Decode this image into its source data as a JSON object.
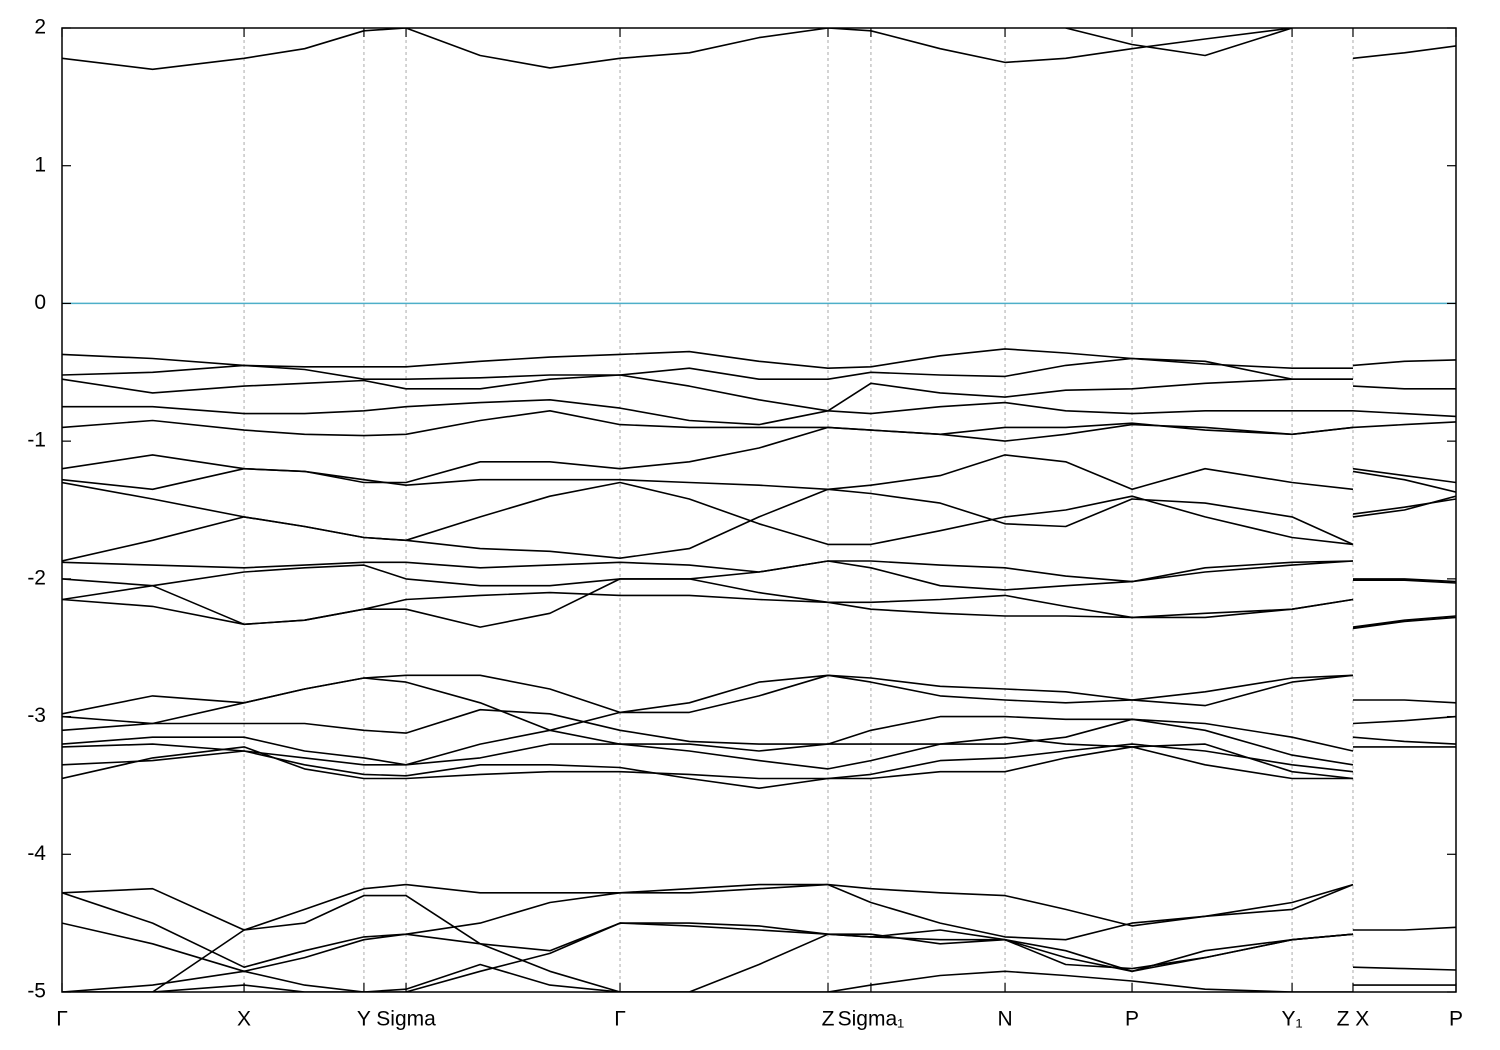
{
  "chart_data": {
    "type": "line",
    "color": "#000000",
    "fermi_color": "#4eafc9",
    "fermi_level": 0,
    "xlim": [
      0,
      1
    ],
    "ylim": [
      -5,
      2
    ],
    "yticks": [
      2,
      1,
      0,
      -1,
      -2,
      -3,
      -4,
      -5
    ],
    "xticks": [
      {
        "value": 0,
        "label": "Γ"
      },
      {
        "value": 0.1306,
        "label": "X"
      },
      {
        "value": 0.2166,
        "label": "Y"
      },
      {
        "value": 0.2468,
        "label": "Sigma"
      },
      {
        "value": 0.4003,
        "label": "Γ"
      },
      {
        "value": 0.5495,
        "label": "Z"
      },
      {
        "value": 0.5803,
        "label": "Sigma₁"
      },
      {
        "value": 0.6765,
        "label": "N"
      },
      {
        "value": 0.7676,
        "label": "P"
      },
      {
        "value": 0.8824,
        "label": "Y₁"
      },
      {
        "value": 0.9261,
        "label": "Z X"
      },
      {
        "value": 1,
        "label": "P"
      }
    ],
    "grid": true,
    "x": [
      0,
      0.065,
      0.1306,
      0.174,
      0.2166,
      0.2468,
      0.3,
      0.35,
      0.4003,
      0.45,
      0.5,
      0.5495,
      0.5803,
      0.63,
      0.6765,
      0.72,
      0.7676,
      0.82,
      0.8824,
      0.9261,
      0.9261,
      0.9261,
      0.963,
      1
    ],
    "series": [
      {
        "values": [
          1.78,
          1.7,
          1.78,
          1.85,
          1.98,
          2.0,
          1.8,
          1.71,
          1.78,
          1.82,
          1.93,
          2.0,
          1.98,
          1.85,
          1.75,
          1.78,
          1.85,
          1.92,
          2.0,
          null,
          null,
          1.78,
          1.82,
          1.87
        ]
      },
      {
        "values": [
          null,
          null,
          null,
          null,
          null,
          null,
          null,
          null,
          null,
          null,
          null,
          null,
          null,
          null,
          null,
          2.0,
          1.88,
          1.8,
          2.0,
          null,
          null,
          null,
          null,
          null
        ]
      },
      {
        "values": [
          -0.37,
          -0.4,
          -0.45,
          -0.46,
          -0.46,
          -0.46,
          -0.42,
          -0.39,
          -0.37,
          -0.35,
          -0.42,
          -0.47,
          -0.46,
          -0.38,
          -0.33,
          -0.36,
          -0.4,
          -0.44,
          -0.47,
          -0.47,
          null,
          -0.45,
          -0.42,
          -0.41
        ]
      },
      {
        "values": [
          -0.52,
          -0.5,
          -0.45,
          -0.48,
          -0.55,
          -0.55,
          -0.54,
          -0.52,
          -0.52,
          -0.47,
          -0.55,
          -0.55,
          -0.5,
          -0.52,
          -0.53,
          -0.45,
          -0.4,
          -0.42,
          -0.55,
          -0.55,
          null,
          -0.6,
          -0.62,
          -0.62
        ]
      },
      {
        "values": [
          -0.55,
          -0.65,
          -0.6,
          -0.58,
          -0.56,
          -0.62,
          -0.62,
          -0.55,
          -0.52,
          -0.6,
          -0.7,
          -0.78,
          -0.58,
          -0.65,
          -0.68,
          -0.63,
          -0.62,
          -0.58,
          -0.55,
          -0.55,
          null,
          -0.78,
          -0.8,
          -0.82
        ]
      },
      {
        "values": [
          -0.75,
          -0.75,
          -0.8,
          -0.8,
          -0.78,
          -0.75,
          -0.72,
          -0.7,
          -0.76,
          -0.85,
          -0.88,
          -0.78,
          -0.8,
          -0.75,
          -0.72,
          -0.78,
          -0.8,
          -0.78,
          -0.78,
          -0.78,
          null,
          -0.9,
          -0.88,
          -0.86
        ]
      },
      {
        "values": [
          -0.9,
          -0.85,
          -0.92,
          -0.95,
          -0.96,
          -0.95,
          -0.85,
          -0.78,
          -0.88,
          -0.9,
          -0.9,
          -0.9,
          -0.92,
          -0.95,
          -1.0,
          -0.95,
          -0.88,
          -0.9,
          -0.95,
          -0.9,
          null,
          -1.2,
          -1.25,
          -1.3
        ]
      },
      {
        "values": [
          -1.2,
          -1.1,
          -1.2,
          -1.22,
          -1.3,
          -1.3,
          -1.15,
          -1.15,
          -1.2,
          -1.15,
          -1.05,
          -0.9,
          -0.92,
          -0.95,
          -0.9,
          -0.9,
          -0.87,
          -0.92,
          -0.95,
          -0.9,
          null,
          -1.22,
          -1.28,
          -1.37
        ]
      },
      {
        "values": [
          -1.28,
          -1.35,
          -1.2,
          -1.22,
          -1.28,
          -1.32,
          -1.28,
          -1.28,
          -1.28,
          -1.3,
          -1.32,
          -1.35,
          -1.32,
          -1.25,
          -1.1,
          -1.15,
          -1.35,
          -1.2,
          -1.3,
          -1.35,
          null,
          -1.55,
          -1.5,
          -1.4
        ]
      },
      {
        "values": [
          -1.3,
          -1.42,
          -1.55,
          -1.62,
          -1.7,
          -1.72,
          -1.55,
          -1.4,
          -1.3,
          -1.42,
          -1.6,
          -1.75,
          -1.75,
          -1.65,
          -1.55,
          -1.5,
          -1.4,
          -1.55,
          -1.7,
          -1.75,
          null,
          -1.53,
          -1.48,
          -1.42
        ]
      },
      {
        "values": [
          -1.87,
          -1.72,
          -1.55,
          -1.62,
          -1.7,
          -1.72,
          -1.78,
          -1.8,
          -1.85,
          -1.78,
          -1.55,
          -1.35,
          -1.38,
          -1.45,
          -1.6,
          -1.62,
          -1.42,
          -1.45,
          -1.55,
          -1.75,
          null,
          -2.0,
          -2.0,
          -2.02
        ]
      },
      {
        "values": [
          -1.88,
          -1.9,
          -1.92,
          -1.9,
          -1.88,
          -1.88,
          -1.92,
          -1.9,
          -1.88,
          -1.9,
          -1.95,
          -1.87,
          -1.87,
          -1.9,
          -1.92,
          -1.98,
          -2.02,
          -1.92,
          -1.88,
          -1.87,
          null,
          -2.01,
          -2.01,
          -2.03
        ]
      },
      {
        "values": [
          -2.0,
          -2.05,
          -1.95,
          -1.92,
          -1.9,
          -2.0,
          -2.05,
          -2.05,
          -2.0,
          -2.0,
          -1.95,
          -1.87,
          -1.92,
          -2.05,
          -2.08,
          -2.05,
          -2.02,
          -1.95,
          -1.9,
          -1.87,
          null,
          -2.35,
          -2.3,
          -2.27
        ]
      },
      {
        "values": [
          -2.15,
          -2.2,
          -2.33,
          -2.3,
          -2.22,
          -2.15,
          -2.12,
          -2.1,
          -2.12,
          -2.12,
          -2.15,
          -2.17,
          -2.17,
          -2.15,
          -2.12,
          -2.2,
          -2.28,
          -2.25,
          -2.22,
          -2.15,
          null,
          -2.36,
          -2.31,
          -2.28
        ]
      },
      {
        "values": [
          -2.15,
          -2.05,
          -2.33,
          -2.3,
          -2.22,
          -2.22,
          -2.35,
          -2.25,
          -2.0,
          -2.0,
          -2.1,
          -2.17,
          -2.22,
          -2.25,
          -2.27,
          -2.27,
          -2.28,
          -2.28,
          -2.22,
          -2.15,
          null,
          null,
          null,
          null
        ]
      },
      {
        "values": [
          -2.98,
          -2.85,
          -2.9,
          -2.8,
          -2.72,
          -2.7,
          -2.7,
          -2.8,
          -2.97,
          -2.9,
          -2.75,
          -2.7,
          -2.72,
          -2.78,
          -2.8,
          -2.82,
          -2.88,
          -2.82,
          -2.72,
          -2.7,
          null,
          -2.88,
          -2.88,
          -2.9
        ]
      },
      {
        "values": [
          -3.0,
          -3.05,
          -2.9,
          -2.8,
          -2.72,
          -2.75,
          -2.9,
          -3.1,
          -2.97,
          -2.97,
          -2.85,
          -2.7,
          -2.75,
          -2.85,
          -2.88,
          -2.9,
          -2.88,
          -2.92,
          -2.75,
          -2.7,
          null,
          -3.05,
          -3.03,
          -3.0
        ]
      },
      {
        "values": [
          -3.1,
          -3.05,
          -3.05,
          -3.05,
          -3.1,
          -3.12,
          -2.95,
          -2.98,
          -3.1,
          -3.18,
          -3.2,
          -3.2,
          -3.2,
          -3.2,
          -3.2,
          -3.15,
          -3.02,
          -3.05,
          -3.15,
          -3.25,
          null,
          -3.15,
          -3.18,
          -3.2
        ]
      },
      {
        "values": [
          -3.2,
          -3.15,
          -3.15,
          -3.25,
          -3.3,
          -3.35,
          -3.2,
          -3.1,
          -3.2,
          -3.2,
          -3.25,
          -3.2,
          -3.1,
          -3.0,
          -3.0,
          -3.02,
          -3.02,
          -3.1,
          -3.28,
          -3.35,
          null,
          -3.22,
          -3.22,
          -3.22
        ]
      },
      {
        "values": [
          -3.22,
          -3.2,
          -3.25,
          -3.3,
          -3.35,
          -3.35,
          -3.3,
          -3.2,
          -3.2,
          -3.25,
          -3.32,
          -3.38,
          -3.32,
          -3.2,
          -3.15,
          -3.2,
          -3.22,
          -3.2,
          -3.4,
          -3.45,
          null,
          null,
          null,
          null
        ]
      },
      {
        "values": [
          -3.35,
          -3.32,
          -3.25,
          -3.35,
          -3.42,
          -3.43,
          -3.35,
          -3.35,
          -3.37,
          -3.45,
          -3.52,
          -3.45,
          -3.45,
          -3.4,
          -3.4,
          -3.3,
          -3.22,
          -3.35,
          -3.45,
          -3.45,
          null,
          null,
          null,
          null
        ]
      },
      {
        "values": [
          -3.45,
          -3.3,
          -3.22,
          -3.38,
          -3.45,
          -3.45,
          -3.42,
          -3.4,
          -3.4,
          -3.42,
          -3.45,
          -3.45,
          -3.42,
          -3.32,
          -3.3,
          -3.25,
          -3.2,
          -3.25,
          -3.35,
          -3.4,
          null,
          null,
          null,
          null
        ]
      },
      {
        "values": [
          -4.28,
          -4.25,
          -4.55,
          -4.4,
          -4.25,
          -4.22,
          -4.28,
          -4.28,
          -4.28,
          -4.25,
          -4.22,
          -4.22,
          -4.25,
          -4.28,
          -4.3,
          -4.4,
          -4.52,
          -4.45,
          -4.35,
          -4.22,
          null,
          -4.55,
          -4.55,
          -4.53
        ]
      },
      {
        "values": [
          -4.28,
          -4.5,
          -4.82,
          -4.7,
          -4.6,
          -4.58,
          -4.5,
          -4.35,
          -4.28,
          -4.28,
          -4.25,
          -4.22,
          -4.35,
          -4.5,
          -4.6,
          -4.62,
          -4.5,
          -4.45,
          -4.4,
          -4.22,
          null,
          -4.82,
          -4.83,
          -4.84
        ]
      },
      {
        "values": [
          -4.5,
          -4.65,
          -4.85,
          -4.75,
          -4.62,
          -4.58,
          -4.65,
          -4.7,
          -4.5,
          -4.52,
          -4.55,
          -4.58,
          -4.6,
          -4.62,
          -4.62,
          -4.75,
          -4.85,
          -4.75,
          -4.62,
          -4.58,
          null,
          -4.95,
          -4.95,
          -4.95
        ]
      },
      {
        "values": [
          -5.0,
          -5.0,
          -4.55,
          -4.5,
          -4.3,
          -4.3,
          -4.65,
          -4.85,
          -5.0,
          -5.0,
          -4.8,
          -4.58,
          -4.58,
          -4.65,
          -4.62,
          -4.7,
          -4.85,
          -4.7,
          -4.62,
          -4.58,
          null,
          null,
          null,
          null
        ]
      },
      {
        "values": [
          -5.0,
          -4.95,
          -4.85,
          -4.95,
          -5.0,
          -5.0,
          -4.85,
          -4.72,
          -4.5,
          -4.5,
          -4.52,
          -4.58,
          -4.6,
          -4.55,
          -4.62,
          -4.8,
          -4.83,
          -4.75,
          -4.62,
          -4.58,
          null,
          null,
          null,
          null
        ]
      },
      {
        "values": [
          -5.0,
          -5.0,
          -4.95,
          -5.0,
          -5.0,
          -4.98,
          -4.8,
          -4.95,
          -5.0,
          -5.0,
          -5.0,
          -5.0,
          -4.95,
          -4.88,
          -4.85,
          -4.88,
          -4.92,
          -4.98,
          -5.0,
          -5.0,
          null,
          null,
          null,
          null
        ]
      }
    ]
  }
}
